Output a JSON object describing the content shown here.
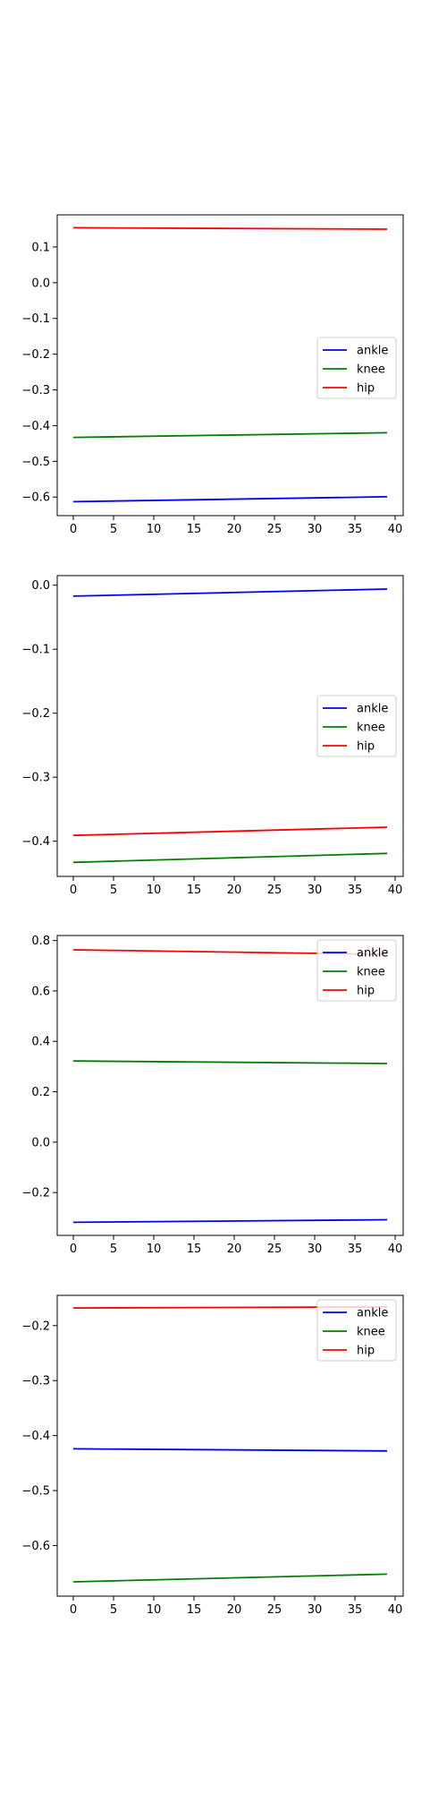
{
  "chart_data": [
    {
      "type": "line",
      "x_range": [
        0,
        39
      ],
      "xlim": [
        -2,
        41
      ],
      "ylim": [
        -0.652,
        0.19
      ],
      "x_ticks": [
        0,
        5,
        10,
        15,
        20,
        25,
        30,
        35,
        40
      ],
      "y_ticks": [
        -0.6,
        -0.5,
        -0.4,
        -0.3,
        -0.2,
        -0.1,
        0.0,
        0.1
      ],
      "y_tick_labels": [
        "−0.6",
        "−0.5",
        "−0.4",
        "−0.3",
        "−0.2",
        "−0.1",
        "0.0",
        "0.1"
      ],
      "legend_position": "center-right",
      "grid": false,
      "series": [
        {
          "name": "ankle",
          "color": "#0000ff",
          "x": [
            0,
            39
          ],
          "y": [
            -0.613,
            -0.599
          ]
        },
        {
          "name": "knee",
          "color": "#008000",
          "x": [
            0,
            39
          ],
          "y": [
            -0.433,
            -0.42
          ]
        },
        {
          "name": "hip",
          "color": "#ff0000",
          "x": [
            0,
            39
          ],
          "y": [
            0.154,
            0.15
          ]
        }
      ]
    },
    {
      "type": "line",
      "x_range": [
        0,
        39
      ],
      "xlim": [
        -2,
        41
      ],
      "ylim": [
        -0.455,
        0.015
      ],
      "x_ticks": [
        0,
        5,
        10,
        15,
        20,
        25,
        30,
        35,
        40
      ],
      "y_ticks": [
        -0.4,
        -0.3,
        -0.2,
        -0.1,
        0.0
      ],
      "y_tick_labels": [
        "−0.4",
        "−0.3",
        "−0.2",
        "−0.1",
        "0.0"
      ],
      "legend_position": "center-right",
      "grid": false,
      "series": [
        {
          "name": "ankle",
          "color": "#0000ff",
          "x": [
            0,
            39
          ],
          "y": [
            -0.017,
            -0.006
          ]
        },
        {
          "name": "knee",
          "color": "#008000",
          "x": [
            0,
            39
          ],
          "y": [
            -0.433,
            -0.419
          ]
        },
        {
          "name": "hip",
          "color": "#ff0000",
          "x": [
            0,
            39
          ],
          "y": [
            -0.391,
            -0.378
          ]
        }
      ]
    },
    {
      "type": "line",
      "x_range": [
        0,
        39
      ],
      "xlim": [
        -2,
        41
      ],
      "ylim": [
        -0.37,
        0.82
      ],
      "x_ticks": [
        0,
        5,
        10,
        15,
        20,
        25,
        30,
        35,
        40
      ],
      "y_ticks": [
        -0.2,
        0.0,
        0.2,
        0.4,
        0.6,
        0.8
      ],
      "y_tick_labels": [
        "−0.2",
        "0.0",
        "0.2",
        "0.4",
        "0.6",
        "0.8"
      ],
      "legend_position": "upper right",
      "grid": false,
      "series": [
        {
          "name": "ankle",
          "color": "#0000ff",
          "x": [
            0,
            39
          ],
          "y": [
            -0.318,
            -0.308
          ]
        },
        {
          "name": "knee",
          "color": "#008000",
          "x": [
            0,
            39
          ],
          "y": [
            0.322,
            0.312
          ]
        },
        {
          "name": "hip",
          "color": "#ff0000",
          "x": [
            0,
            39
          ],
          "y": [
            0.763,
            0.745
          ]
        }
      ]
    },
    {
      "type": "line",
      "x_range": [
        0,
        39
      ],
      "xlim": [
        -2,
        41
      ],
      "ylim": [
        -0.692,
        -0.145
      ],
      "x_ticks": [
        0,
        5,
        10,
        15,
        20,
        25,
        30,
        35,
        40
      ],
      "y_ticks": [
        -0.6,
        -0.5,
        -0.4,
        -0.3,
        -0.2
      ],
      "y_tick_labels": [
        "−0.6",
        "−0.5",
        "−0.4",
        "−0.3",
        "−0.2"
      ],
      "legend_position": "upper right",
      "grid": false,
      "series": [
        {
          "name": "ankle",
          "color": "#0000ff",
          "x": [
            0,
            39
          ],
          "y": [
            -0.424,
            -0.428
          ]
        },
        {
          "name": "knee",
          "color": "#008000",
          "x": [
            0,
            39
          ],
          "y": [
            -0.666,
            -0.652
          ]
        },
        {
          "name": "hip",
          "color": "#ff0000",
          "x": [
            0,
            39
          ],
          "y": [
            -0.168,
            -0.166
          ]
        }
      ]
    }
  ]
}
